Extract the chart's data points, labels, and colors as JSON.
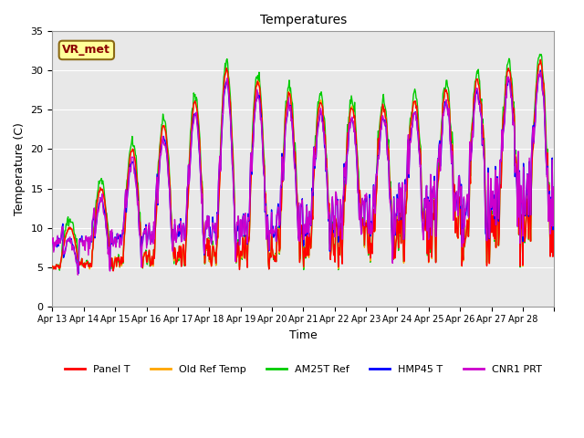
{
  "title": "Temperatures",
  "xlabel": "Time",
  "ylabel": "Temperature (C)",
  "ylim": [
    0,
    35
  ],
  "annotation": "VR_met",
  "x_tick_labels": [
    "Apr 13",
    "Apr 14",
    "Apr 15",
    "Apr 16",
    "Apr 17",
    "Apr 18",
    "Apr 19",
    "Apr 20",
    "Apr 21",
    "Apr 22",
    "Apr 23",
    "Apr 24",
    "Apr 25",
    "Apr 26",
    "Apr 27",
    "Apr 28"
  ],
  "legend_labels": [
    "Panel T",
    "Old Ref Temp",
    "AM25T Ref",
    "HMP45 T",
    "CNR1 PRT"
  ],
  "legend_colors": [
    "#ff0000",
    "#ffa500",
    "#00cc00",
    "#0000ff",
    "#cc00cc"
  ],
  "line_colors": {
    "panel_t": "#ff0000",
    "old_ref": "#ffa500",
    "am25t": "#00cc00",
    "hmp45": "#0000ff",
    "cnr1": "#cc00cc"
  },
  "bg_color": "#e8e8e8",
  "plot_bg": "#e8e8e8",
  "n_days": 16,
  "samples_per_day": 48
}
